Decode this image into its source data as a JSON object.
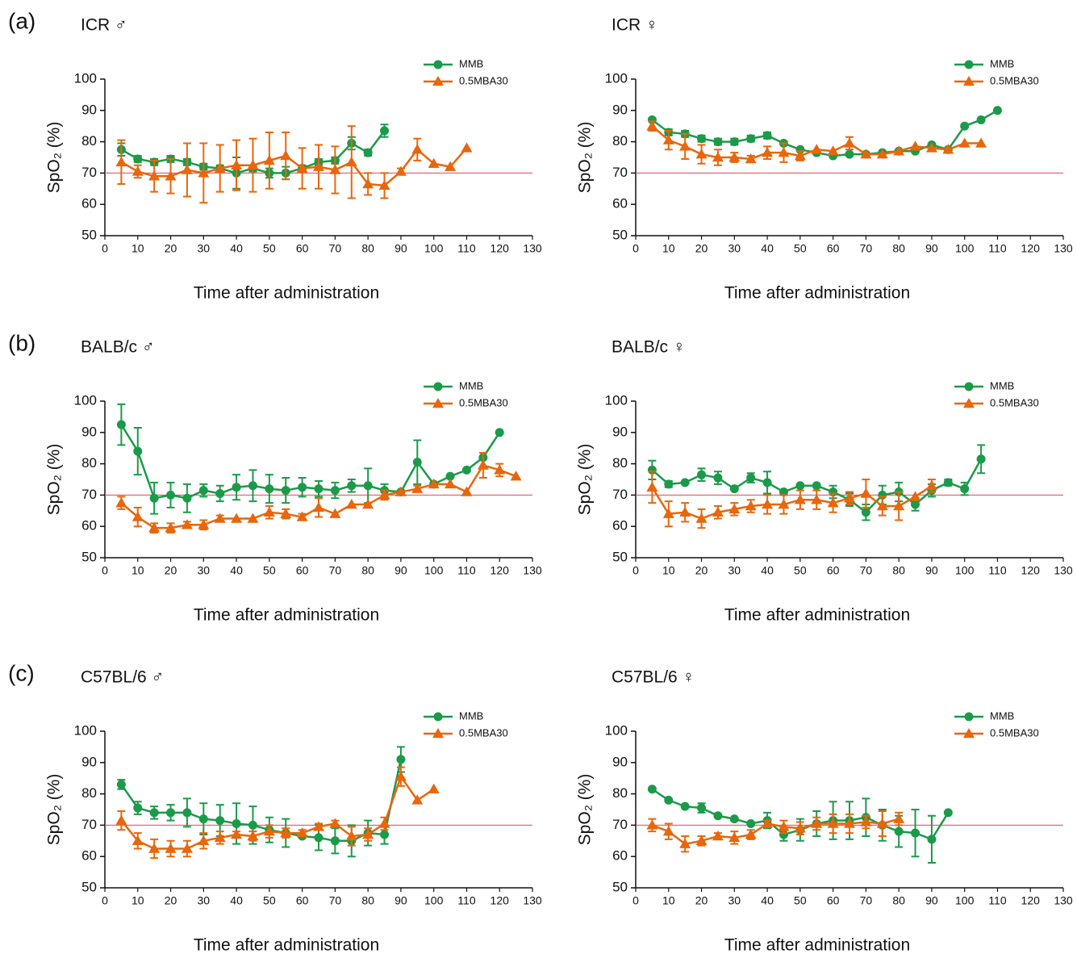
{
  "chart_data": [
    {
      "type": "line",
      "panel_label": "(a)",
      "title": "ICR ♂",
      "xlabel": "Time after administration",
      "ylabel": "SpO₂ (%)",
      "xlim": [
        0,
        130
      ],
      "ylim": [
        50,
        100
      ],
      "xticks": [
        0,
        10,
        20,
        30,
        40,
        50,
        60,
        70,
        80,
        90,
        100,
        110,
        120,
        130
      ],
      "yticks": [
        50,
        60,
        70,
        80,
        90,
        100
      ],
      "reference_line": {
        "value": 70,
        "color": "#e8405a"
      },
      "series": [
        {
          "name": "MMB",
          "color": "#1b9a4a",
          "marker": "circle",
          "x": [
            5,
            10,
            15,
            20,
            25,
            30,
            35,
            40,
            45,
            50,
            55,
            60,
            65,
            70,
            75,
            80,
            85
          ],
          "values": [
            77.5,
            74.5,
            73.5,
            74.5,
            73.5,
            72,
            71.5,
            70,
            71.5,
            70,
            70,
            71.5,
            73.5,
            74,
            79.5,
            76.5,
            83.5
          ],
          "errors": [
            2,
            1,
            1,
            1,
            1,
            1,
            1,
            5,
            1,
            1.5,
            2,
            1,
            1,
            1,
            2,
            1,
            2
          ]
        },
        {
          "name": "0.5MBA30",
          "color": "#e8660c",
          "marker": "triangle",
          "x": [
            5,
            10,
            15,
            20,
            25,
            30,
            35,
            40,
            45,
            50,
            55,
            60,
            65,
            70,
            75,
            80,
            85,
            90,
            95,
            100,
            105,
            110
          ],
          "values": [
            73.5,
            70.5,
            69,
            69,
            71,
            70,
            71.5,
            72.5,
            72.5,
            74,
            75.5,
            71.5,
            72,
            71,
            73.5,
            66.5,
            66,
            70.5,
            77.5,
            73,
            72,
            78
          ],
          "errors": [
            7,
            2,
            5,
            5.5,
            8.5,
            9.5,
            7.5,
            8,
            8.5,
            9,
            7.5,
            6.5,
            7,
            7.5,
            11.5,
            3.5,
            4,
            1,
            3.5,
            null,
            null,
            null
          ]
        }
      ]
    },
    {
      "type": "line",
      "title": "ICR ♀",
      "xlabel": "Time after administration",
      "ylabel": "SpO₂ (%)",
      "xlim": [
        0,
        130
      ],
      "ylim": [
        50,
        100
      ],
      "xticks": [
        0,
        10,
        20,
        30,
        40,
        50,
        60,
        70,
        80,
        90,
        100,
        110,
        120,
        130
      ],
      "yticks": [
        50,
        60,
        70,
        80,
        90,
        100
      ],
      "reference_line": {
        "value": 70,
        "color": "#e8405a"
      },
      "series": [
        {
          "name": "MMB",
          "color": "#1b9a4a",
          "marker": "circle",
          "x": [
            5,
            10,
            15,
            20,
            25,
            30,
            35,
            40,
            45,
            50,
            55,
            60,
            65,
            70,
            75,
            80,
            85,
            90,
            95,
            100,
            105,
            110
          ],
          "values": [
            87,
            83,
            82.5,
            81,
            80,
            80,
            81,
            82,
            79.5,
            77.5,
            76.5,
            75.5,
            76,
            76,
            76.5,
            77,
            77,
            79,
            77.5,
            85,
            87,
            90
          ],
          "errors": [
            null,
            1,
            1,
            1,
            1,
            1,
            1,
            1,
            null,
            null,
            null,
            null,
            null,
            null,
            null,
            null,
            null,
            null,
            null,
            null,
            null,
            null
          ]
        },
        {
          "name": "0.5MBA30",
          "color": "#e8660c",
          "marker": "triangle",
          "x": [
            5,
            10,
            15,
            20,
            25,
            30,
            35,
            40,
            45,
            50,
            55,
            60,
            65,
            70,
            75,
            80,
            85,
            90,
            95,
            100,
            105
          ],
          "values": [
            85,
            80.5,
            78.5,
            76,
            75,
            75,
            74.5,
            76.5,
            76.5,
            75.5,
            77.5,
            77,
            79.5,
            76,
            76,
            77,
            78.5,
            78,
            77.5,
            79.5,
            79.5
          ],
          "errors": [
            1.5,
            3,
            4,
            3,
            2.5,
            1.5,
            1,
            2,
            3,
            1.5,
            null,
            null,
            2,
            null,
            null,
            null,
            null,
            null,
            null,
            null,
            null
          ]
        }
      ]
    },
    {
      "type": "line",
      "panel_label": "(b)",
      "title": "BALB/c ♂",
      "xlabel": "Time after administration",
      "ylabel": "SpO₂ (%)",
      "xlim": [
        0,
        130
      ],
      "ylim": [
        50,
        100
      ],
      "xticks": [
        0,
        10,
        20,
        30,
        40,
        50,
        60,
        70,
        80,
        90,
        100,
        110,
        120,
        130
      ],
      "yticks": [
        50,
        60,
        70,
        80,
        90,
        100
      ],
      "reference_line": {
        "value": 70,
        "color": "#e8405a"
      },
      "series": [
        {
          "name": "MMB",
          "color": "#1b9a4a",
          "marker": "circle",
          "x": [
            5,
            10,
            15,
            20,
            25,
            30,
            35,
            40,
            45,
            50,
            55,
            60,
            65,
            70,
            75,
            80,
            85,
            90,
            95,
            100,
            105,
            110,
            115,
            120
          ],
          "values": [
            92.5,
            84,
            69,
            70,
            69,
            71.5,
            70.5,
            72.5,
            73,
            72,
            71.5,
            72.5,
            72,
            71.5,
            73,
            73,
            71.5,
            71,
            80.5,
            73.5,
            76,
            78,
            82,
            90
          ],
          "errors": [
            6.5,
            7.5,
            5,
            4,
            4.5,
            2,
            2.5,
            4,
            5,
            4.5,
            4,
            3,
            2.5,
            2.5,
            2,
            5.5,
            2,
            null,
            7,
            null,
            null,
            null,
            null,
            null
          ]
        },
        {
          "name": "0.5MBA30",
          "color": "#e8660c",
          "marker": "triangle",
          "x": [
            5,
            10,
            15,
            20,
            25,
            30,
            35,
            40,
            45,
            50,
            55,
            60,
            65,
            70,
            75,
            80,
            85,
            90,
            95,
            100,
            105,
            110,
            115,
            120,
            125
          ],
          "values": [
            67.5,
            63,
            59.5,
            59.5,
            60.5,
            60.5,
            62.5,
            62.5,
            62.5,
            64.5,
            64,
            63,
            66,
            64,
            67,
            67,
            70,
            71,
            72,
            73.5,
            73.5,
            71,
            79.5,
            78,
            76
          ],
          "errors": [
            2,
            3,
            1.5,
            1.5,
            1,
            1.5,
            1,
            null,
            null,
            2,
            1.5,
            1,
            3,
            null,
            null,
            null,
            1.5,
            null,
            1,
            null,
            null,
            null,
            4,
            2,
            null
          ]
        }
      ]
    },
    {
      "type": "line",
      "title": "BALB/c ♀",
      "xlabel": "Time after administration",
      "ylabel": "SpO₂ (%)",
      "xlim": [
        0,
        130
      ],
      "ylim": [
        50,
        100
      ],
      "xticks": [
        0,
        10,
        20,
        30,
        40,
        50,
        60,
        70,
        80,
        90,
        100,
        110,
        120,
        130
      ],
      "yticks": [
        50,
        60,
        70,
        80,
        90,
        100
      ],
      "reference_line": {
        "value": 70,
        "color": "#e8405a"
      },
      "series": [
        {
          "name": "MMB",
          "color": "#1b9a4a",
          "marker": "circle",
          "x": [
            5,
            10,
            15,
            20,
            25,
            30,
            35,
            40,
            45,
            50,
            55,
            60,
            65,
            70,
            75,
            80,
            85,
            90,
            95,
            100,
            105
          ],
          "values": [
            78,
            73.5,
            74,
            76.5,
            75.5,
            72,
            75.5,
            74,
            71,
            73,
            73,
            71,
            68.5,
            64.5,
            70,
            71,
            67,
            71.5,
            74,
            72,
            81.5
          ],
          "errors": [
            3,
            1,
            null,
            2,
            2,
            null,
            1.5,
            3.5,
            null,
            null,
            null,
            2,
            2,
            2.5,
            3,
            3,
            2,
            2,
            1,
            2,
            4.5
          ]
        },
        {
          "name": "0.5MBA30",
          "color": "#e8660c",
          "marker": "triangle",
          "x": [
            5,
            10,
            15,
            20,
            25,
            30,
            35,
            40,
            45,
            50,
            55,
            60,
            65,
            70,
            75,
            80,
            85,
            90
          ],
          "values": [
            72.5,
            64,
            64.5,
            62.5,
            64.5,
            65.5,
            66.5,
            67,
            67,
            68.5,
            68.5,
            67.5,
            69,
            70.5,
            66.5,
            66.5,
            69.5,
            73
          ],
          "errors": [
            5,
            4,
            3,
            3,
            2,
            2,
            2,
            3,
            3,
            3,
            3,
            3,
            2,
            4.5,
            3,
            4.5,
            null,
            2
          ]
        }
      ]
    },
    {
      "type": "line",
      "panel_label": "(c)",
      "title": "C57BL/6 ♂",
      "xlabel": "Time after administration",
      "ylabel": "SpO₂ (%)",
      "xlim": [
        0,
        130
      ],
      "ylim": [
        50,
        100
      ],
      "xticks": [
        0,
        10,
        20,
        30,
        40,
        50,
        60,
        70,
        80,
        90,
        100,
        110,
        120,
        130
      ],
      "yticks": [
        50,
        60,
        70,
        80,
        90,
        100
      ],
      "reference_line": {
        "value": 70,
        "color": "#e8405a"
      },
      "series": [
        {
          "name": "MMB",
          "color": "#1b9a4a",
          "marker": "circle",
          "x": [
            5,
            10,
            15,
            20,
            25,
            30,
            35,
            40,
            45,
            50,
            55,
            60,
            65,
            70,
            75,
            80,
            85,
            90
          ],
          "values": [
            83,
            75.5,
            74,
            74,
            74,
            72,
            71.5,
            70.5,
            70,
            68.5,
            67.5,
            66.5,
            66,
            65,
            65,
            67.5,
            67,
            91
          ],
          "errors": [
            1.5,
            2,
            2,
            2.5,
            4.5,
            5,
            5,
            6.5,
            6,
            4,
            4.5,
            null,
            4,
            4,
            5,
            4,
            3,
            4
          ]
        },
        {
          "name": "0.5MBA30",
          "color": "#e8660c",
          "marker": "triangle",
          "x": [
            5,
            10,
            15,
            20,
            25,
            30,
            35,
            40,
            45,
            50,
            55,
            60,
            65,
            70,
            75,
            80,
            85,
            90,
            95,
            100
          ],
          "values": [
            71.5,
            65,
            62.5,
            62.5,
            62.5,
            65,
            66,
            67,
            66.5,
            68,
            67.5,
            67.5,
            69.5,
            70.5,
            66.5,
            67,
            70.5,
            85.5,
            78,
            81.5
          ],
          "errors": [
            3,
            2.5,
            3,
            2.5,
            2.5,
            2.5,
            2,
            1,
            1.5,
            2,
            1.5,
            1,
            1,
            1,
            3,
            2,
            2,
            3,
            null,
            null
          ]
        }
      ]
    },
    {
      "type": "line",
      "title": "C57BL/6 ♀",
      "xlabel": "Time after administration",
      "ylabel": "SpO₂ (%)",
      "xlim": [
        0,
        130
      ],
      "ylim": [
        50,
        100
      ],
      "xticks": [
        0,
        10,
        20,
        30,
        40,
        50,
        60,
        70,
        80,
        90,
        100,
        110,
        120,
        130
      ],
      "yticks": [
        50,
        60,
        70,
        80,
        90,
        100
      ],
      "reference_line": {
        "value": 70,
        "color": "#e8405a"
      },
      "series": [
        {
          "name": "MMB",
          "color": "#1b9a4a",
          "marker": "circle",
          "x": [
            5,
            10,
            15,
            20,
            25,
            30,
            35,
            40,
            45,
            50,
            55,
            60,
            65,
            70,
            75,
            80,
            85,
            90,
            95
          ],
          "values": [
            81.5,
            78,
            76,
            75.5,
            73,
            72,
            70.5,
            71.5,
            67,
            68.5,
            70.5,
            71.5,
            71.5,
            72.5,
            70,
            68,
            67.5,
            65.5,
            74
          ],
          "errors": [
            null,
            null,
            null,
            1.5,
            null,
            null,
            null,
            2.5,
            2,
            3.5,
            4,
            6,
            6,
            6,
            5,
            5,
            7.5,
            7.5,
            null
          ]
        },
        {
          "name": "0.5MBA30",
          "color": "#e8660c",
          "marker": "triangle",
          "x": [
            5,
            10,
            15,
            20,
            25,
            30,
            35,
            40,
            45,
            50,
            55,
            60,
            65,
            70,
            75,
            80
          ],
          "values": [
            70,
            68,
            64,
            65,
            66.5,
            66,
            67,
            70.5,
            69.5,
            69,
            70.5,
            70.5,
            70.5,
            71,
            70.5,
            72
          ],
          "errors": [
            2,
            2.5,
            2.5,
            1.5,
            1,
            2,
            1.5,
            1,
            2,
            2,
            2,
            3,
            3,
            2,
            4,
            2
          ]
        }
      ]
    }
  ]
}
